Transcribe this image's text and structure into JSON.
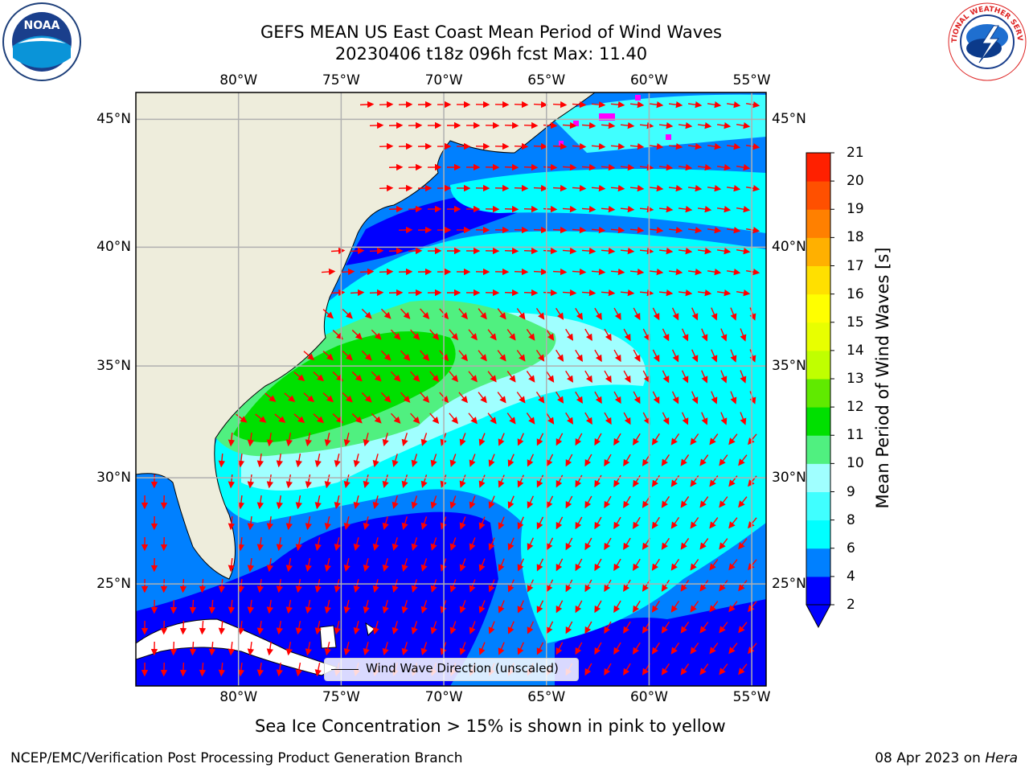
{
  "title": {
    "line1": "GEFS MEAN US East Coast Mean Period of Wind Waves",
    "line2": "20230406 t18z 096h fcst   Max: 11.40"
  },
  "logos": {
    "left": {
      "name": "noaa-logo",
      "text": "NOAA"
    },
    "right": {
      "name": "nws-logo",
      "text": "NATIONAL WEATHER SERVICE"
    }
  },
  "map": {
    "lon_labels": [
      "80°W",
      "75°W",
      "70°W",
      "65°W",
      "60°W",
      "55°W"
    ],
    "lat_labels": [
      "45°N",
      "40°N",
      "35°N",
      "30°N",
      "25°N"
    ],
    "lon_range": [
      -85,
      -54.3
    ],
    "lat_range": [
      20,
      46
    ],
    "grid": true,
    "colors": {
      "land": "#eeeddc",
      "gridline": "#b0b0b0",
      "arrows": "#ff0000",
      "sea_ice": "#ff00ff"
    },
    "legend": {
      "label": "Wind Wave Direction (unscaled)"
    }
  },
  "colorbar": {
    "label": "Mean Period of Wind Waves [s]",
    "ticks": [
      "2",
      "4",
      "6",
      "8",
      "9",
      "10",
      "11",
      "12",
      "13",
      "14",
      "15",
      "16",
      "17",
      "18",
      "19",
      "20",
      "21"
    ],
    "colors": [
      "#0000ff",
      "#0080ff",
      "#00ffff",
      "#40ffff",
      "#a0ffff",
      "#50f080",
      "#00e000",
      "#60ea00",
      "#c0ff00",
      "#e8ff00",
      "#ffff00",
      "#ffe000",
      "#ffb000",
      "#ff8000",
      "#ff5000",
      "#ff2000",
      "#ff0000"
    ],
    "extend": "min"
  },
  "footer": {
    "ice_note": "Sea Ice Concentration > 15% is shown in pink to yellow",
    "left": "NCEP/EMC/Verification Post Processing Product Generation Branch",
    "date": "08 Apr 2023 on",
    "machine": "Hera"
  }
}
